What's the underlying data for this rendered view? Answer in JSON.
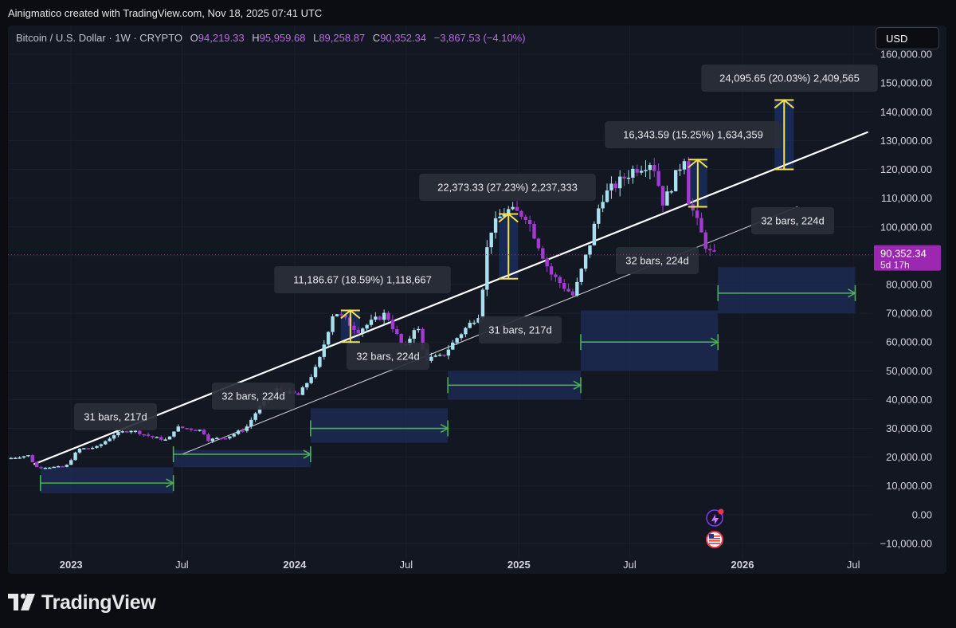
{
  "header": {
    "attribution": "Ainigmatico created with TradingView.com, Nov 18, 2025 07:41 UTC"
  },
  "legend": {
    "symbol": "Bitcoin / U.S. Dollar · 1W · CRYPTO",
    "o_label": "O",
    "o_value": "94,219.33",
    "h_label": "H",
    "h_value": "95,959.68",
    "l_label": "L",
    "l_value": "89,258.87",
    "c_label": "C",
    "c_value": "90,352.34",
    "change": "−3,867.53 (−4.10%)"
  },
  "currency_button": "USD",
  "price_tag": {
    "price": "90,352.34",
    "countdown": "5d 17h"
  },
  "footer": {
    "brand": "TradingView"
  },
  "colors": {
    "up": "#a8e0f0",
    "down": "#a23bd1",
    "accent": "#9c27b0",
    "measure": "#f5e14a",
    "range_arrow": "#4caf50",
    "range_box": "#1c2a52"
  },
  "chart_data": {
    "type": "candlestick",
    "title": "Bitcoin / U.S. Dollar · 1W · CRYPTO",
    "ylim": [
      -15000,
      170000
    ],
    "y_ticks": [
      "160,000.00",
      "150,000.00",
      "140,000.00",
      "130,000.00",
      "120,000.00",
      "110,000.00",
      "100,000.00",
      "90,000.00",
      "80,000.00",
      "70,000.00",
      "60,000.00",
      "50,000.00",
      "40,000.00",
      "30,000.00",
      "20,000.00",
      "10,000.00",
      "0.00",
      "−10,000.00"
    ],
    "y_tick_values": [
      160000,
      150000,
      140000,
      130000,
      120000,
      110000,
      100000,
      90000,
      80000,
      70000,
      60000,
      50000,
      40000,
      30000,
      20000,
      10000,
      0,
      -10000
    ],
    "x_ticks": [
      {
        "label": "2023",
        "date": "2023-01-01"
      },
      {
        "label": "Jul",
        "date": "2023-07-01"
      },
      {
        "label": "2024",
        "date": "2024-01-01"
      },
      {
        "label": "Jul",
        "date": "2024-07-01"
      },
      {
        "label": "2025",
        "date": "2025-01-01"
      },
      {
        "label": "Jul",
        "date": "2025-07-01"
      },
      {
        "label": "2026",
        "date": "2026-01-01"
      },
      {
        "label": "Jul",
        "date": "2026-07-01"
      }
    ],
    "x_range": [
      "2022-09-20",
      "2026-08-01"
    ],
    "price_path": [
      [
        "2022-09-25",
        19500
      ],
      [
        "2022-10-30",
        20600
      ],
      [
        "2022-11-12",
        16500
      ],
      [
        "2022-12-30",
        16600
      ],
      [
        "2023-01-20",
        22800
      ],
      [
        "2023-02-20",
        23500
      ],
      [
        "2023-03-20",
        28000
      ],
      [
        "2023-04-15",
        29500
      ],
      [
        "2023-05-20",
        27000
      ],
      [
        "2023-06-15",
        25800
      ],
      [
        "2023-06-28",
        30400
      ],
      [
        "2023-08-10",
        29300
      ],
      [
        "2023-08-20",
        26000
      ],
      [
        "2023-09-20",
        27000
      ],
      [
        "2023-10-20",
        30000
      ],
      [
        "2023-11-10",
        37000
      ],
      [
        "2023-12-10",
        43500
      ],
      [
        "2024-01-15",
        41500
      ],
      [
        "2024-02-15",
        52000
      ],
      [
        "2024-03-12",
        71000
      ],
      [
        "2024-04-20",
        64000
      ],
      [
        "2024-06-05",
        70000
      ],
      [
        "2024-07-05",
        57000
      ],
      [
        "2024-07-25",
        67000
      ],
      [
        "2024-08-07",
        54000
      ],
      [
        "2024-09-05",
        55000
      ],
      [
        "2024-10-01",
        62000
      ],
      [
        "2024-11-05",
        70000
      ],
      [
        "2024-11-20",
        98000
      ],
      [
        "2024-12-17",
        106000
      ],
      [
        "2025-01-20",
        104000
      ],
      [
        "2025-02-28",
        84000
      ],
      [
        "2025-04-07",
        76000
      ],
      [
        "2025-05-05",
        95000
      ],
      [
        "2025-05-22",
        110000
      ],
      [
        "2025-07-14",
        120000
      ],
      [
        "2025-08-14",
        123000
      ],
      [
        "2025-09-01",
        108000
      ],
      [
        "2025-10-06",
        125000
      ],
      [
        "2025-10-11",
        110000
      ],
      [
        "2025-11-10",
        93000
      ],
      [
        "2025-11-18",
        90352
      ]
    ],
    "trendlines": [
      {
        "from": [
          "2022-11-01",
          17500
        ],
        "to": [
          "2026-07-25",
          133000
        ],
        "color": "#ffffff"
      },
      {
        "from": [
          "2023-07-01",
          21000
        ],
        "to": [
          "2026-04-01",
          107000
        ],
        "color": "#c8cad0"
      }
    ],
    "measurements": [
      {
        "label": "11,186.67 (18.59%) 1,118,667",
        "x": "2024-04-01",
        "from": 60000,
        "to": 71000
      },
      {
        "label": "22,373.33 (27.23%) 2,237,333",
        "x": "2024-12-15",
        "from": 82000,
        "to": 104500
      },
      {
        "label": "16,343.59 (15.25%) 1,634,359",
        "x": "2025-10-20",
        "from": 107000,
        "to": 123400
      },
      {
        "label": "24,095.65 (20.03%) 2,409,565",
        "x": "2026-03-10",
        "from": 120000,
        "to": 144100
      }
    ],
    "ranges": [
      {
        "label": "31 bars, 217d",
        "start": "2022-11-12",
        "end": "2023-06-17",
        "box_low": 7500,
        "box_high": 16500,
        "arrow_y": 11000
      },
      {
        "label": "32 bars, 224d",
        "start": "2023-06-17",
        "end": "2024-01-27",
        "box_low": 16500,
        "box_high": 22500,
        "arrow_y": 21000
      },
      {
        "label": "32 bars, 224d",
        "start": "2024-01-27",
        "end": "2024-09-07",
        "box_low": 25000,
        "box_high": 37000,
        "arrow_y": 30000
      },
      {
        "label": "31 bars, 217d",
        "start": "2024-09-07",
        "end": "2025-04-12",
        "box_low": 40000,
        "box_high": 50000,
        "arrow_y": 45000
      },
      {
        "label": "32 bars, 224d",
        "start": "2025-04-12",
        "end": "2025-11-22",
        "box_low": 50000,
        "box_high": 71000,
        "arrow_y": 60000
      },
      {
        "label": "32 bars, 224d",
        "start": "2025-11-22",
        "end": "2026-07-04",
        "box_low": 70000,
        "box_high": 86000,
        "arrow_y": 77000
      }
    ],
    "last_price": 90352.34
  }
}
